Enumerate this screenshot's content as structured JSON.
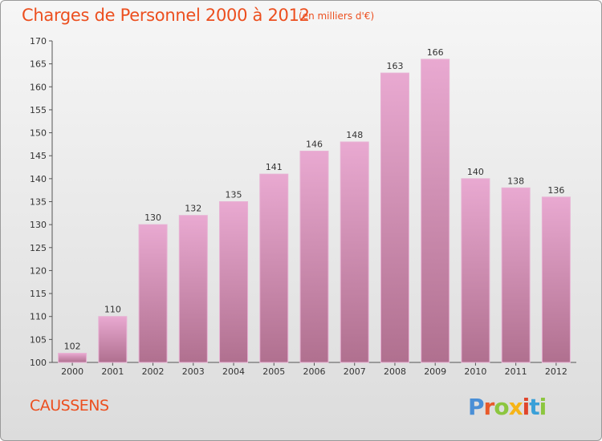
{
  "title": "Charges de Personnel 2000 à 2012",
  "subtitle": "(en milliers d'€)",
  "town": "CAUSSENS",
  "logo_text": "Proxiti",
  "colors": {
    "title": "#ec4f1f",
    "bar_top": "#e9a9d1",
    "bar_bottom": "#b0708f",
    "logo_p": "#4a8fd6",
    "logo_r": "#e85a2a",
    "logo_o": "#8cc63f",
    "logo_x": "#f6b417",
    "logo_i": "#e0452b",
    "logo_t": "#3aa0d8",
    "logo_i2": "#8cc63f"
  },
  "chart_data": {
    "type": "bar",
    "categories": [
      "2000",
      "2001",
      "2002",
      "2003",
      "2004",
      "2005",
      "2006",
      "2007",
      "2008",
      "2009",
      "2010",
      "2011",
      "2012"
    ],
    "values": [
      102,
      110,
      130,
      132,
      135,
      141,
      146,
      148,
      163,
      166,
      140,
      138,
      136
    ],
    "ylim": [
      100,
      170
    ],
    "yticks": [
      100,
      105,
      110,
      115,
      120,
      125,
      130,
      135,
      140,
      145,
      150,
      155,
      160,
      165,
      170
    ],
    "grid": false,
    "data_labels": true
  }
}
